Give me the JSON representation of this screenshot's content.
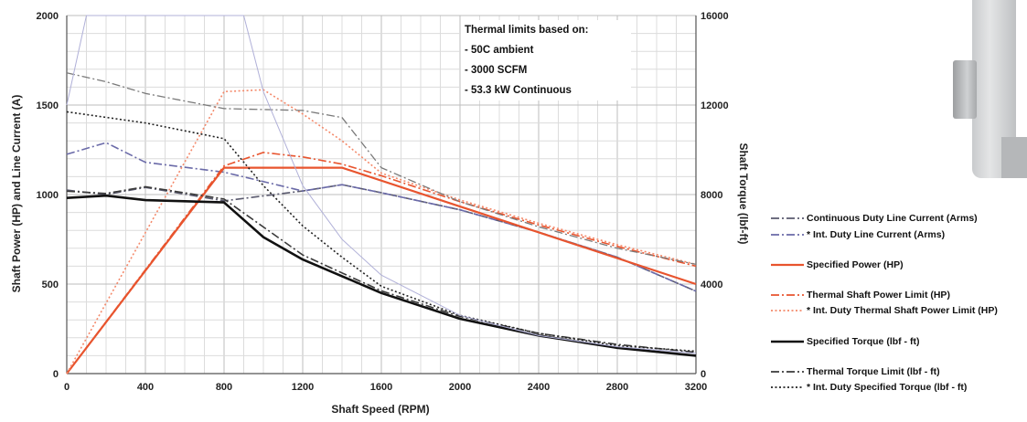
{
  "chart_data": {
    "type": "line",
    "xlabel": "Shaft Speed (RPM)",
    "ylabel_left": "Shaft Power (HP) and  Line Current (A)",
    "ylabel_right": "Shaft Torque (lbf-ft)",
    "xlim": [
      0,
      3200
    ],
    "ylim_left": [
      0,
      2000
    ],
    "ylim_right": [
      0,
      16000
    ],
    "x_ticks": [
      "0",
      "400",
      "800",
      "1200",
      "1600",
      "2000",
      "2400",
      "2800",
      "3200"
    ],
    "y_left_ticks": [
      "0",
      "500",
      "1000",
      "1500",
      "2000"
    ],
    "y_right_ticks": [
      "0",
      "4000",
      "8000",
      "12000",
      "16000"
    ],
    "grid": true,
    "annotation": {
      "title": "Thermal limits based on:",
      "lines": [
        "- 50C ambient",
        "- 3000 SCFM",
        "- 53.3 kW Continuous"
      ]
    },
    "legend_position": "right",
    "series": [
      {
        "name": "Continuous Duty Line Current (Arms)",
        "axis": "left",
        "color": "#5a5a6e",
        "dash": "dashdot",
        "x": [
          0,
          200,
          400,
          800,
          1200,
          1400,
          1600,
          2000,
          2400,
          2800,
          3200
        ],
        "y": [
          1025,
          1000,
          1040,
          965,
          1020,
          1055,
          1010,
          915,
          790,
          650,
          460
        ]
      },
      {
        "name": "* Int. Duty Line Current (Arms)",
        "axis": "left",
        "color": "#6a6aa8",
        "dash": "dashdot",
        "x": [
          0,
          200,
          400,
          800,
          1200,
          1400,
          1600,
          2000,
          2400,
          2800,
          3200
        ],
        "y": [
          1225,
          1290,
          1180,
          1125,
          1020,
          1055,
          1010,
          915,
          790,
          650,
          460
        ]
      },
      {
        "name": "Specified Power (HP)",
        "axis": "left",
        "color": "#e8542e",
        "dash": "solid",
        "x": [
          0,
          800,
          1400,
          3200
        ],
        "y": [
          0,
          1150,
          1150,
          500
        ]
      },
      {
        "name": "Thermal Shaft Power Limit (HP)",
        "axis": "left",
        "color": "#e8542e",
        "dash": "dashdot",
        "x": [
          0,
          800,
          1000,
          1200,
          1400,
          1600,
          2000,
          2400,
          2800,
          3200
        ],
        "y": [
          0,
          1160,
          1235,
          1210,
          1170,
          1105,
          960,
          830,
          710,
          600
        ]
      },
      {
        "name": "* Int. Duty Thermal Shaft Power Limit (HP)",
        "axis": "left",
        "color": "#f4896a",
        "dash": "dotted",
        "x": [
          0,
          800,
          1000,
          1200,
          1400,
          1600,
          2000,
          2400,
          2800,
          3200
        ],
        "y": [
          0,
          1575,
          1585,
          1450,
          1300,
          1120,
          970,
          840,
          720,
          610
        ]
      },
      {
        "name": "Specified Torque (lbf - ft)",
        "axis": "right",
        "color": "#111111",
        "dash": "solid",
        "x": [
          0,
          200,
          400,
          800,
          1000,
          1200,
          1400,
          1600,
          2000,
          2400,
          2800,
          3200
        ],
        "y": [
          7850,
          7950,
          7750,
          7650,
          6100,
          5100,
          4350,
          3600,
          2450,
          1700,
          1150,
          800
        ]
      },
      {
        "name": "Thermal Torque Limit (lbf - ft)",
        "axis": "right",
        "color": "#3a3a3a",
        "dash": "dashdot",
        "x": [
          0,
          200,
          400,
          800,
          1000,
          1200,
          1400,
          1600,
          2000,
          2400,
          2800,
          3200
        ],
        "y": [
          8150,
          8050,
          8350,
          7800,
          6550,
          5300,
          4500,
          3700,
          2550,
          1800,
          1300,
          950
        ]
      },
      {
        "name": "* Int. Duty Specified Torque (lbf - ft)",
        "axis": "right",
        "color": "#222222",
        "dash": "dotted",
        "x": [
          0,
          400,
          800,
          1000,
          1200,
          1400,
          1600,
          2000,
          2400,
          2800,
          3200
        ],
        "y": [
          11700,
          11200,
          10500,
          8400,
          6600,
          5200,
          3900,
          2600,
          1800,
          1250,
          1000
        ]
      },
      {
        "axis": "left",
        "color": "#7a7a7a",
        "dash": "dashdot",
        "width": 1.3,
        "x": [
          0,
          200,
          400,
          800,
          1200,
          1400,
          1600,
          2000,
          2400,
          2800,
          3200
        ],
        "y": [
          1680,
          1630,
          1565,
          1480,
          1470,
          1430,
          1150,
          960,
          820,
          700,
          610
        ]
      },
      {
        "axis": "right",
        "color": "#b0b0d8",
        "dash": "solid",
        "width": 1.0,
        "x": [
          0,
          100,
          150,
          800,
          900,
          1000,
          1200,
          1400,
          1600,
          2000,
          2400,
          2800,
          3200
        ],
        "y": [
          12000,
          16000,
          16000,
          16000,
          16000,
          12600,
          8400,
          6000,
          4400,
          2600,
          1700,
          1200,
          900
        ]
      }
    ]
  }
}
